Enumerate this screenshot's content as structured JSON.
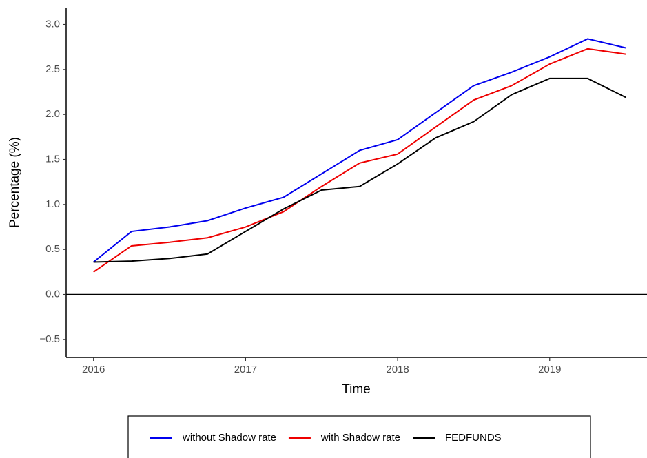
{
  "chart_data": {
    "type": "line",
    "x_label": "Time",
    "y_label": "Percentage (%)",
    "x": [
      2016,
      2016.25,
      2016.5,
      2016.75,
      2017,
      2017.25,
      2017.5,
      2017.75,
      2018,
      2018.25,
      2018.5,
      2018.75,
      2019,
      2019.25,
      2019.5
    ],
    "series": [
      {
        "name": "without Shadow rate",
        "color": "#0000ee",
        "values": [
          0.36,
          0.7,
          0.75,
          0.82,
          0.96,
          1.08,
          1.34,
          1.6,
          1.72,
          2.02,
          2.32,
          2.47,
          2.64,
          2.84,
          2.74
        ]
      },
      {
        "name": "with Shadow rate",
        "color": "#ee0000",
        "values": [
          0.25,
          0.54,
          0.58,
          0.63,
          0.75,
          0.92,
          1.2,
          1.46,
          1.56,
          1.86,
          2.16,
          2.32,
          2.56,
          2.73,
          2.67
        ]
      },
      {
        "name": "FEDFUNDS",
        "color": "#000000",
        "values": [
          0.36,
          0.37,
          0.4,
          0.45,
          0.7,
          0.95,
          1.16,
          1.2,
          1.45,
          1.74,
          1.92,
          2.22,
          2.4,
          2.4,
          2.19
        ]
      }
    ],
    "xlim": [
      2015.82,
      2019.64
    ],
    "xticks": [
      2016,
      2017,
      2018,
      2019
    ],
    "ylim": [
      -0.7,
      3.18
    ],
    "yticks": [
      {
        "value": -0.5,
        "label": "−0.5"
      },
      {
        "value": 0,
        "label": "0.0"
      },
      {
        "value": 0.5,
        "label": "0.5"
      },
      {
        "value": 1,
        "label": "1.0"
      },
      {
        "value": 1.5,
        "label": "1.5"
      },
      {
        "value": 2,
        "label": "2.0"
      },
      {
        "value": 2.5,
        "label": "2.5"
      },
      {
        "value": 3,
        "label": "3.0"
      }
    ],
    "hline": 0,
    "legend": "bottom"
  }
}
